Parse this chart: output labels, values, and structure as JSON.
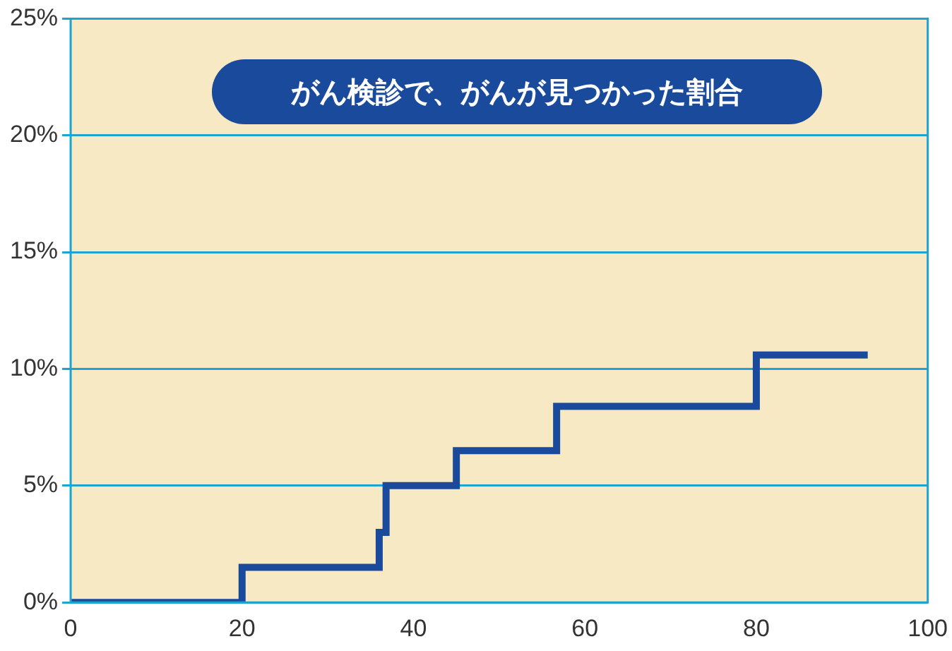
{
  "chart_data": {
    "type": "step",
    "title": "がん検診で、がんが見つかった割合",
    "x": [
      0,
      20,
      36,
      36.8,
      45,
      56.7,
      80,
      93
    ],
    "series": [
      {
        "color": "#1a4a9c",
        "values": [
          0,
          1.5,
          3,
          5,
          6.5,
          8.4,
          10.6,
          10.6
        ]
      }
    ],
    "xlim": [
      0,
      100
    ],
    "xticks": [
      0,
      20,
      40,
      60,
      80,
      100
    ],
    "ylim": [
      0,
      25
    ],
    "yticks": [
      {
        "value": 0,
        "label": "0%"
      },
      {
        "value": 5,
        "label": "5%"
      },
      {
        "value": 10,
        "label": "10%"
      },
      {
        "value": 15,
        "label": "15%"
      },
      {
        "value": 20,
        "label": "20%"
      },
      {
        "value": 25,
        "label": "25%"
      }
    ],
    "grid": "y",
    "legend": false,
    "marker": "none",
    "line_style": "solid"
  }
}
